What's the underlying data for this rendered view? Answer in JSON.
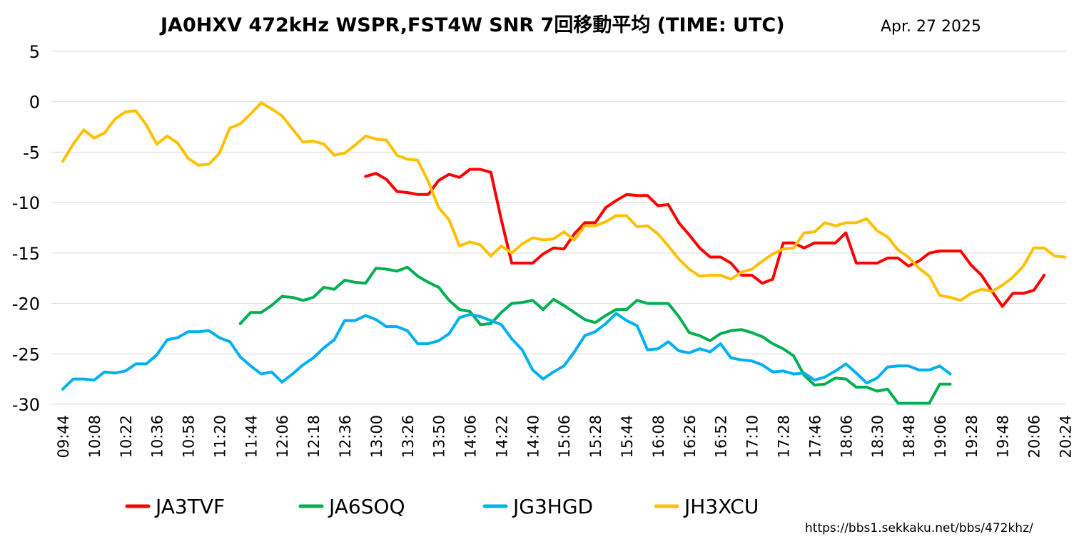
{
  "chart_data": {
    "type": "line",
    "title": "JA0HXV 472kHz WSPR,FST4W SNR 7回移動平均 (TIME: UTC)",
    "date": "Apr. 27 2025",
    "source": "https://bbs1.sekkaku.net/bbs/472khz/",
    "ylim": [
      -30,
      5
    ],
    "yticks": [
      5,
      0,
      -5,
      -10,
      -15,
      -20,
      -25,
      -30
    ],
    "grid": true,
    "legend_position": "bottom",
    "x_range": [
      0,
      94
    ],
    "x_ticks": [
      {
        "i": 0,
        "label": "09:44"
      },
      {
        "i": 3,
        "label": "10:08"
      },
      {
        "i": 6,
        "label": "10:22"
      },
      {
        "i": 9,
        "label": "10:36"
      },
      {
        "i": 12,
        "label": "10:58"
      },
      {
        "i": 15,
        "label": "11:20"
      },
      {
        "i": 18,
        "label": "11:44"
      },
      {
        "i": 21,
        "label": "12:06"
      },
      {
        "i": 24,
        "label": "12:18"
      },
      {
        "i": 27,
        "label": "12:36"
      },
      {
        "i": 30,
        "label": "13:00"
      },
      {
        "i": 33,
        "label": "13:26"
      },
      {
        "i": 36,
        "label": "13:50"
      },
      {
        "i": 39,
        "label": "14:06"
      },
      {
        "i": 42,
        "label": "14:22"
      },
      {
        "i": 45,
        "label": "14:40"
      },
      {
        "i": 48,
        "label": "15:06"
      },
      {
        "i": 51,
        "label": "15:28"
      },
      {
        "i": 54,
        "label": "15:44"
      },
      {
        "i": 57,
        "label": "16:08"
      },
      {
        "i": 60,
        "label": "16:26"
      },
      {
        "i": 63,
        "label": "16:52"
      },
      {
        "i": 66,
        "label": "17:10"
      },
      {
        "i": 69,
        "label": "17:28"
      },
      {
        "i": 72,
        "label": "17:46"
      },
      {
        "i": 75,
        "label": "18:06"
      },
      {
        "i": 78,
        "label": "18:30"
      },
      {
        "i": 81,
        "label": "18:48"
      },
      {
        "i": 84,
        "label": "19:06"
      },
      {
        "i": 87,
        "label": "19:28"
      },
      {
        "i": 90,
        "label": "19:48"
      },
      {
        "i": 93,
        "label": "20:06"
      },
      {
        "i": 96,
        "label": "20:24"
      }
    ],
    "series": [
      {
        "name": "JA3TVF",
        "color": "#ff0000",
        "start": 29,
        "values": [
          -7.4,
          -7.1,
          -7.7,
          -8.9,
          -9.0,
          -9.2,
          -9.2,
          -7.8,
          -7.2,
          -7.5,
          -6.7,
          -6.7,
          -7.0,
          -11.7,
          -16.0,
          -16.0,
          -16.0,
          -15.1,
          -14.5,
          -14.6,
          -13.1,
          -12.0,
          -12.0,
          -10.5,
          -9.8,
          -9.2,
          -9.3,
          -9.3,
          -10.3,
          -10.2,
          -12.0,
          -13.2,
          -14.5,
          -15.4,
          -15.4,
          -16.0,
          -17.2,
          -17.2,
          -18.0,
          -17.6,
          -14.0,
          -14.0,
          -14.5,
          -14.0,
          -14.0,
          -14.0,
          -13.0,
          -16.0,
          -16.0,
          -16.0,
          -15.5,
          -15.5,
          -16.3,
          -15.8,
          -15.0,
          -14.8,
          -14.8,
          -14.8,
          -16.2,
          -17.2,
          -18.8,
          -20.3,
          -19.0,
          -19.0,
          -18.7,
          -17.2
        ]
      },
      {
        "name": "JA6SOQ",
        "color": "#00b050",
        "start": 17,
        "values": [
          -22.0,
          -20.9,
          -20.9,
          -20.2,
          -19.3,
          -19.4,
          -19.7,
          -19.4,
          -18.4,
          -18.6,
          -17.7,
          -17.9,
          -18.0,
          -16.5,
          -16.6,
          -16.8,
          -16.4,
          -17.3,
          -17.9,
          -18.4,
          -19.7,
          -20.6,
          -20.8,
          -22.1,
          -22.0,
          -20.9,
          -20.0,
          -19.9,
          -19.7,
          -20.6,
          -19.6,
          -20.2,
          -20.9,
          -21.6,
          -21.9,
          -21.2,
          -20.6,
          -20.6,
          -19.7,
          -20.0,
          -20.0,
          -20.0,
          -21.3,
          -22.9,
          -23.2,
          -23.7,
          -23.0,
          -22.7,
          -22.6,
          -22.9,
          -23.3,
          -24.0,
          -24.5,
          -25.2,
          -27.1,
          -28.1,
          -28.0,
          -27.4,
          -27.5,
          -28.3,
          -28.3,
          -28.7,
          -28.5,
          -29.9,
          -29.9,
          -29.9,
          -29.9,
          -28.0,
          -28.0
        ]
      },
      {
        "name": "JG3HGD",
        "color": "#00b0f0",
        "start": 0,
        "values": [
          -28.5,
          -27.5,
          -27.5,
          -27.6,
          -26.8,
          -26.9,
          -26.7,
          -26.0,
          -26.0,
          -25.1,
          -23.6,
          -23.4,
          -22.8,
          -22.8,
          -22.7,
          -23.4,
          -23.8,
          -25.3,
          -26.2,
          -27.0,
          -26.8,
          -27.8,
          -27.0,
          -26.1,
          -25.4,
          -24.4,
          -23.6,
          -21.7,
          -21.7,
          -21.2,
          -21.6,
          -22.3,
          -22.3,
          -22.7,
          -24.0,
          -24.0,
          -23.7,
          -23.0,
          -21.4,
          -21.1,
          -21.3,
          -21.7,
          -22.1,
          -23.5,
          -24.6,
          -26.6,
          -27.5,
          -26.8,
          -26.2,
          -24.8,
          -23.2,
          -22.8,
          -22.0,
          -21.0,
          -21.7,
          -22.2,
          -24.6,
          -24.5,
          -23.8,
          -24.7,
          -24.9,
          -24.5,
          -24.8,
          -24.0,
          -25.4,
          -25.6,
          -25.7,
          -26.1,
          -26.8,
          -26.7,
          -27.0,
          -26.9,
          -27.6,
          -27.3,
          -26.7,
          -26.0,
          -26.9,
          -27.9,
          -27.4,
          -26.3,
          -26.2,
          -26.2,
          -26.6,
          -26.6,
          -26.2,
          -27.0
        ]
      },
      {
        "name": "JH3XCU",
        "color": "#ffc000",
        "start": 0,
        "values": [
          -5.9,
          -4.2,
          -2.8,
          -3.6,
          -3.1,
          -1.7,
          -1.0,
          -0.9,
          -2.3,
          -4.2,
          -3.4,
          -4.1,
          -5.6,
          -6.3,
          -6.2,
          -5.1,
          -2.6,
          -2.2,
          -1.2,
          -0.1,
          -0.7,
          -1.4,
          -2.7,
          -4.0,
          -3.9,
          -4.2,
          -5.3,
          -5.1,
          -4.3,
          -3.4,
          -3.7,
          -3.8,
          -5.3,
          -5.7,
          -5.8,
          -7.9,
          -10.5,
          -11.7,
          -14.3,
          -13.9,
          -14.2,
          -15.3,
          -14.3,
          -15.0,
          -14.1,
          -13.5,
          -13.7,
          -13.6,
          -12.9,
          -13.7,
          -12.3,
          -12.3,
          -11.9,
          -11.3,
          -11.3,
          -12.4,
          -12.3,
          -13.1,
          -14.3,
          -15.6,
          -16.6,
          -17.3,
          -17.2,
          -17.2,
          -17.6,
          -16.9,
          -16.6,
          -15.8,
          -15.1,
          -14.6,
          -14.5,
          -13.0,
          -12.9,
          -12.0,
          -12.3,
          -12.0,
          -12.0,
          -11.6,
          -12.8,
          -13.4,
          -14.7,
          -15.4,
          -16.5,
          -17.3,
          -19.2,
          -19.4,
          -19.7,
          -19.0,
          -18.6,
          -18.8,
          -18.2,
          -17.4,
          -16.3,
          -14.5,
          -14.5,
          -15.3,
          -15.4
        ]
      }
    ]
  }
}
